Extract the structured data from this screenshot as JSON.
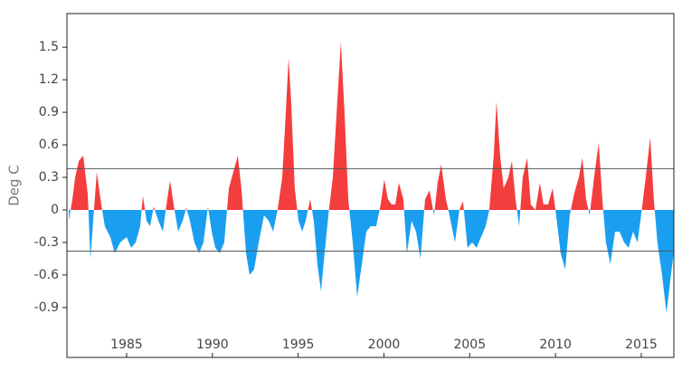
{
  "chart_data": {
    "type": "area",
    "ylabel": "Deg C",
    "x": [
      1981.63,
      1981.84,
      1982.0,
      1982.21,
      1982.47,
      1982.73,
      1982.89,
      1983.05,
      1983.26,
      1983.52,
      1983.73,
      1984.05,
      1984.31,
      1984.63,
      1985.0,
      1985.26,
      1985.53,
      1985.79,
      1985.95,
      1986.16,
      1986.37,
      1986.58,
      1986.85,
      1987.11,
      1987.37,
      1987.53,
      1987.74,
      1988.0,
      1988.27,
      1988.48,
      1988.69,
      1988.95,
      1989.22,
      1989.48,
      1989.74,
      1989.96,
      1990.17,
      1990.43,
      1990.69,
      1990.96,
      1991.22,
      1991.48,
      1991.69,
      1991.96,
      1992.17,
      1992.43,
      1992.7,
      1993.01,
      1993.28,
      1993.54,
      1993.8,
      1994.07,
      1994.28,
      1994.44,
      1994.59,
      1994.8,
      1995.02,
      1995.23,
      1995.44,
      1995.7,
      1995.91,
      1996.12,
      1996.33,
      1996.54,
      1996.76,
      1997.02,
      1997.28,
      1997.49,
      1997.7,
      1997.92,
      1998.18,
      1998.44,
      1998.71,
      1998.97,
      1999.23,
      1999.55,
      1999.81,
      2000.02,
      2000.23,
      2000.45,
      2000.66,
      2000.87,
      2001.13,
      2001.34,
      2001.61,
      2001.87,
      2002.13,
      2002.4,
      2002.66,
      2002.92,
      2003.13,
      2003.34,
      2003.61,
      2003.82,
      2004.14,
      2004.4,
      2004.61,
      2004.87,
      2005.14,
      2005.4,
      2005.66,
      2005.93,
      2006.14,
      2006.4,
      2006.56,
      2006.77,
      2006.98,
      2007.25,
      2007.46,
      2007.67,
      2007.88,
      2008.09,
      2008.35,
      2008.56,
      2008.83,
      2009.09,
      2009.3,
      2009.57,
      2009.83,
      2010.04,
      2010.3,
      2010.57,
      2010.83,
      2011.09,
      2011.36,
      2011.57,
      2011.78,
      2011.99,
      2012.25,
      2012.52,
      2012.73,
      2012.94,
      2013.2,
      2013.47,
      2013.73,
      2014.0,
      2014.26,
      2014.52,
      2014.78,
      2014.99,
      2015.26,
      2015.52,
      2015.73,
      2015.94,
      2016.21,
      2016.47,
      2016.73,
      2016.89
    ],
    "values": [
      -0.1,
      0.1,
      0.3,
      0.45,
      0.5,
      0.15,
      -0.45,
      -0.1,
      0.35,
      0.05,
      -0.15,
      -0.25,
      -0.4,
      -0.3,
      -0.25,
      -0.35,
      -0.3,
      -0.15,
      0.13,
      -0.1,
      -0.15,
      0.03,
      -0.1,
      -0.2,
      0.1,
      0.27,
      0.05,
      -0.2,
      -0.1,
      0.02,
      -0.1,
      -0.3,
      -0.4,
      -0.3,
      0.03,
      -0.2,
      -0.35,
      -0.4,
      -0.3,
      0.2,
      0.35,
      0.5,
      0.2,
      -0.4,
      -0.6,
      -0.55,
      -0.3,
      -0.05,
      -0.1,
      -0.2,
      0,
      0.3,
      0.9,
      1.4,
      1.0,
      0.2,
      -0.1,
      -0.2,
      -0.1,
      0.1,
      -0.1,
      -0.5,
      -0.75,
      -0.4,
      -0.05,
      0.3,
      1.0,
      1.55,
      0.9,
      0.1,
      -0.3,
      -0.8,
      -0.5,
      -0.2,
      -0.15,
      -0.15,
      0.05,
      0.28,
      0.1,
      0.05,
      0.05,
      0.25,
      0.1,
      -0.4,
      -0.1,
      -0.2,
      -0.45,
      0.1,
      0.18,
      -0.05,
      0.25,
      0.42,
      0.1,
      -0.05,
      -0.3,
      0,
      0.08,
      -0.35,
      -0.3,
      -0.35,
      -0.25,
      -0.15,
      0,
      0.5,
      1.0,
      0.5,
      0.2,
      0.3,
      0.45,
      0.1,
      -0.15,
      0.3,
      0.48,
      0.05,
      0,
      0.25,
      0.05,
      0.05,
      0.2,
      -0.05,
      -0.4,
      -0.55,
      -0.05,
      0.15,
      0.3,
      0.48,
      0.1,
      -0.05,
      0.3,
      0.62,
      0.1,
      -0.3,
      -0.5,
      -0.2,
      -0.2,
      -0.3,
      -0.35,
      -0.2,
      -0.3,
      -0.05,
      0.3,
      0.67,
      0.1,
      -0.3,
      -0.6,
      -0.95,
      -0.6,
      -0.4
    ],
    "positive_color": "#f43d3d",
    "negative_color": "#1a9ff0",
    "reference_lines": [
      0.38,
      -0.38
    ],
    "xlim": [
      1981.52,
      2016.9
    ],
    "xticks": [
      1985,
      1990,
      1995,
      2000,
      2005,
      2010,
      2015
    ],
    "ylim": [
      -1.36,
      1.81
    ],
    "yticks": [
      -0.9,
      -0.6,
      -0.3,
      0,
      0.3,
      0.6,
      0.9,
      1.2,
      1.5
    ]
  }
}
